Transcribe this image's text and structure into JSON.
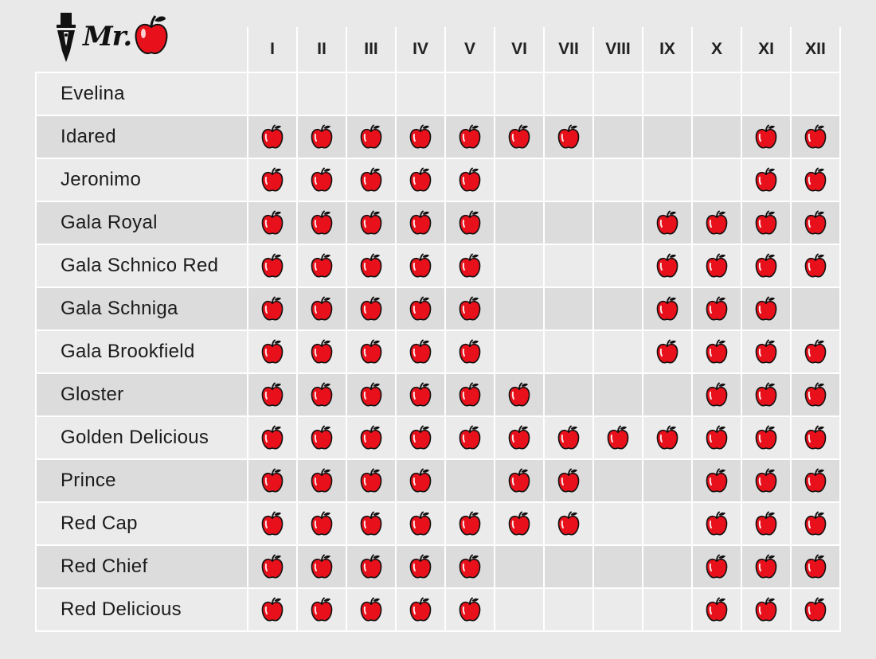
{
  "logo": {
    "text": "Mr."
  },
  "months": [
    "I",
    "II",
    "III",
    "IV",
    "V",
    "VI",
    "VII",
    "VIII",
    "IX",
    "X",
    "XI",
    "XII"
  ],
  "varieties": [
    {
      "name": "Evelina",
      "available": [
        0,
        0,
        0,
        0,
        0,
        0,
        0,
        0,
        0,
        0,
        0,
        0
      ]
    },
    {
      "name": "Idared",
      "available": [
        1,
        1,
        1,
        1,
        1,
        1,
        1,
        0,
        0,
        0,
        1,
        1
      ]
    },
    {
      "name": "Jeronimo",
      "available": [
        1,
        1,
        1,
        1,
        1,
        0,
        0,
        0,
        0,
        0,
        1,
        1
      ]
    },
    {
      "name": "Gala Royal",
      "available": [
        1,
        1,
        1,
        1,
        1,
        0,
        0,
        0,
        1,
        1,
        1,
        1
      ]
    },
    {
      "name": "Gala Schnico Red",
      "available": [
        1,
        1,
        1,
        1,
        1,
        0,
        0,
        0,
        1,
        1,
        1,
        1
      ]
    },
    {
      "name": "Gala Schniga",
      "available": [
        1,
        1,
        1,
        1,
        1,
        0,
        0,
        0,
        1,
        1,
        1,
        0
      ]
    },
    {
      "name": "Gala Brookfield",
      "available": [
        1,
        1,
        1,
        1,
        1,
        0,
        0,
        0,
        1,
        1,
        1,
        1
      ]
    },
    {
      "name": "Gloster",
      "available": [
        1,
        1,
        1,
        1,
        1,
        1,
        0,
        0,
        0,
        1,
        1,
        1
      ]
    },
    {
      "name": "Golden Delicious",
      "available": [
        1,
        1,
        1,
        1,
        1,
        1,
        1,
        1,
        1,
        1,
        1,
        1
      ]
    },
    {
      "name": "Prince",
      "available": [
        1,
        1,
        1,
        1,
        0,
        1,
        1,
        0,
        0,
        1,
        1,
        1
      ]
    },
    {
      "name": "Red Cap",
      "available": [
        1,
        1,
        1,
        1,
        1,
        1,
        1,
        0,
        0,
        1,
        1,
        1
      ]
    },
    {
      "name": "Red Chief",
      "available": [
        1,
        1,
        1,
        1,
        1,
        0,
        0,
        0,
        0,
        1,
        1,
        1
      ]
    },
    {
      "name": "Red Delicious",
      "available": [
        1,
        1,
        1,
        1,
        1,
        0,
        0,
        0,
        0,
        1,
        1,
        1
      ]
    }
  ],
  "colors": {
    "apple": "#e8101a",
    "row_light": "#ebebeb",
    "row_dark": "#dcdcdc",
    "grid_line": "#ffffff"
  },
  "icons": {
    "mark": "apple-icon",
    "logo": "top-hat-apple-logo"
  }
}
